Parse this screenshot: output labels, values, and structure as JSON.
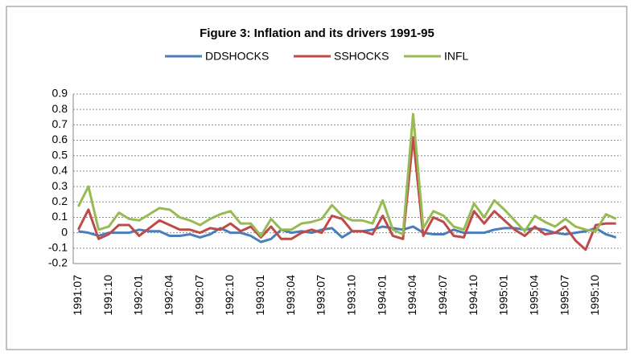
{
  "chart_data": {
    "type": "line",
    "title": "Figure 3: Inflation and its drivers 1991-95",
    "categories": [
      "1991:07",
      null,
      null,
      "1991:10",
      null,
      null,
      "1992:01",
      null,
      null,
      "1992:04",
      null,
      null,
      "1992:07",
      null,
      null,
      "1992:10",
      null,
      null,
      "1993:01",
      null,
      null,
      "1993:04",
      null,
      null,
      "1993:07",
      null,
      null,
      "1993:10",
      null,
      null,
      "1994:01",
      null,
      null,
      "1994:04",
      null,
      null,
      "1994:07",
      null,
      null,
      "1994:10",
      null,
      null,
      "1995:01",
      null,
      null,
      "1995:04",
      null,
      null,
      "1995:07",
      null,
      null,
      "1995:10",
      null,
      null
    ],
    "series": [
      {
        "name": "DDSHOCKS",
        "color": "#4a7ebb",
        "values": [
          0.01,
          0.0,
          -0.02,
          0.0,
          0.0,
          0.0,
          0.02,
          0.01,
          0.01,
          -0.02,
          -0.02,
          -0.01,
          -0.03,
          -0.01,
          0.03,
          0.0,
          0.0,
          -0.02,
          -0.06,
          -0.04,
          0.02,
          0.0,
          0.01,
          0.0,
          0.02,
          0.03,
          -0.03,
          0.01,
          0.01,
          0.02,
          0.04,
          0.03,
          0.02,
          0.04,
          0.0,
          -0.01,
          -0.01,
          0.02,
          0.0,
          0.0,
          0.0,
          0.02,
          0.03,
          0.03,
          0.02,
          0.03,
          0.02,
          0.0,
          -0.01,
          0.0,
          0.01,
          0.03,
          -0.01,
          -0.03
        ]
      },
      {
        "name": "SSHOCKS",
        "color": "#be4b48",
        "values": [
          0.02,
          0.15,
          -0.04,
          -0.01,
          0.05,
          0.05,
          -0.02,
          0.03,
          0.08,
          0.05,
          0.02,
          0.02,
          0.0,
          0.03,
          0.02,
          0.06,
          0.01,
          0.04,
          -0.03,
          0.04,
          -0.04,
          -0.04,
          0.0,
          0.02,
          0.0,
          0.11,
          0.09,
          0.01,
          0.01,
          -0.01,
          0.11,
          -0.02,
          -0.04,
          0.62,
          -0.02,
          0.1,
          0.07,
          -0.02,
          -0.03,
          0.14,
          0.06,
          0.14,
          0.08,
          0.02,
          -0.02,
          0.04,
          -0.01,
          0.0,
          0.04,
          -0.05,
          -0.11,
          0.05,
          0.06,
          0.06
        ]
      },
      {
        "name": "INFL",
        "color": "#98b954",
        "values": [
          0.17,
          0.3,
          0.02,
          0.04,
          0.13,
          0.09,
          0.08,
          0.12,
          0.16,
          0.15,
          0.1,
          0.08,
          0.05,
          0.09,
          0.12,
          0.14,
          0.06,
          0.06,
          -0.02,
          0.09,
          0.02,
          0.02,
          0.06,
          0.07,
          0.09,
          0.18,
          0.11,
          0.08,
          0.08,
          0.06,
          0.21,
          0.02,
          -0.01,
          0.77,
          0.03,
          0.14,
          0.11,
          0.04,
          0.02,
          0.19,
          0.1,
          0.21,
          0.15,
          0.08,
          0.01,
          0.11,
          0.07,
          0.04,
          0.09,
          0.04,
          0.02,
          0.01,
          0.12,
          0.09
        ]
      }
    ],
    "ylim": [
      -0.2,
      0.9
    ],
    "yticks": [
      -0.2,
      -0.1,
      0,
      0.1,
      0.2,
      0.3,
      0.4,
      0.5,
      0.6,
      0.7,
      0.8,
      0.9
    ],
    "grid": true,
    "legend": "top"
  }
}
